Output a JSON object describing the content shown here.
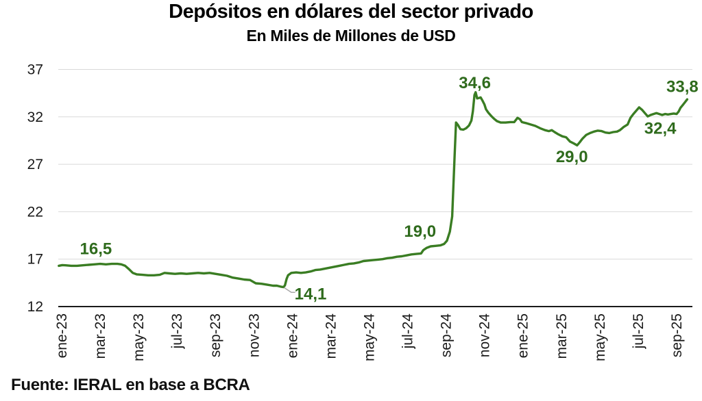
{
  "chart_data": {
    "type": "line",
    "title": "Depósitos en dólares del sector privado",
    "subtitle": "En Miles de Millones de USD",
    "source": "Fuente: IERAL en base a BCRA",
    "unit": "Miles de Millones de USD",
    "x_tick_labels": [
      "ene-23",
      "mar-23",
      "may-23",
      "jul-23",
      "sep-23",
      "nov-23",
      "ene-24",
      "mar-24",
      "may-24",
      "jul-24",
      "sep-24",
      "nov-24",
      "ene-25",
      "mar-25",
      "may-25",
      "jul-25",
      "sep-25"
    ],
    "y_ticks": [
      12,
      17,
      22,
      27,
      32,
      37
    ],
    "ylim": [
      12,
      37
    ],
    "xlim": [
      -0.3,
      33
    ],
    "grid": true,
    "legend": "none",
    "colors": {
      "line": "#3A7D23",
      "data_label": "#2F6B1D",
      "gridline": "#D9D9D9",
      "axis": "#1a1a1a",
      "tick_text": "#1a1a1a",
      "leader": "#A6A6A6",
      "background": "#ffffff"
    },
    "series": [
      {
        "name": "Depósitos en dólares del sector privado (miles de millones USD)",
        "points": [
          [
            -0.15,
            16.3
          ],
          [
            0.2,
            16.35
          ],
          [
            0.5,
            16.3
          ],
          [
            0.8,
            16.3
          ],
          [
            1.1,
            16.35
          ],
          [
            1.4,
            16.4
          ],
          [
            1.7,
            16.45
          ],
          [
            2.0,
            16.5
          ],
          [
            2.3,
            16.45
          ],
          [
            2.6,
            16.5
          ],
          [
            2.9,
            16.5
          ],
          [
            3.1,
            16.45
          ],
          [
            3.3,
            16.3
          ],
          [
            3.5,
            15.95
          ],
          [
            3.7,
            15.55
          ],
          [
            3.9,
            15.4
          ],
          [
            4.2,
            15.35
          ],
          [
            4.5,
            15.3
          ],
          [
            4.8,
            15.3
          ],
          [
            5.1,
            15.35
          ],
          [
            5.35,
            15.55
          ],
          [
            5.6,
            15.5
          ],
          [
            5.9,
            15.45
          ],
          [
            6.2,
            15.5
          ],
          [
            6.5,
            15.45
          ],
          [
            6.8,
            15.5
          ],
          [
            7.1,
            15.55
          ],
          [
            7.4,
            15.5
          ],
          [
            7.7,
            15.55
          ],
          [
            8.0,
            15.45
          ],
          [
            8.3,
            15.35
          ],
          [
            8.6,
            15.25
          ],
          [
            8.9,
            15.05
          ],
          [
            9.2,
            14.95
          ],
          [
            9.5,
            14.85
          ],
          [
            9.8,
            14.8
          ],
          [
            10.1,
            14.45
          ],
          [
            10.4,
            14.4
          ],
          [
            10.7,
            14.3
          ],
          [
            11.0,
            14.2
          ],
          [
            11.2,
            14.2
          ],
          [
            11.4,
            14.1
          ],
          [
            11.55,
            14.05
          ],
          [
            11.62,
            14.25
          ],
          [
            11.7,
            14.9
          ],
          [
            11.78,
            15.3
          ],
          [
            11.95,
            15.55
          ],
          [
            12.2,
            15.6
          ],
          [
            12.45,
            15.55
          ],
          [
            12.7,
            15.6
          ],
          [
            12.95,
            15.7
          ],
          [
            13.2,
            15.85
          ],
          [
            13.45,
            15.9
          ],
          [
            13.7,
            16.0
          ],
          [
            13.95,
            16.1
          ],
          [
            14.2,
            16.2
          ],
          [
            14.45,
            16.3
          ],
          [
            14.7,
            16.4
          ],
          [
            14.95,
            16.5
          ],
          [
            15.2,
            16.55
          ],
          [
            15.45,
            16.65
          ],
          [
            15.7,
            16.8
          ],
          [
            15.95,
            16.85
          ],
          [
            16.2,
            16.9
          ],
          [
            16.45,
            16.95
          ],
          [
            16.7,
            17.0
          ],
          [
            16.95,
            17.1
          ],
          [
            17.2,
            17.15
          ],
          [
            17.45,
            17.25
          ],
          [
            17.7,
            17.3
          ],
          [
            17.95,
            17.4
          ],
          [
            18.2,
            17.5
          ],
          [
            18.45,
            17.55
          ],
          [
            18.7,
            17.6
          ],
          [
            18.82,
            17.95
          ],
          [
            19.0,
            18.2
          ],
          [
            19.2,
            18.35
          ],
          [
            19.45,
            18.4
          ],
          [
            19.7,
            18.45
          ],
          [
            19.9,
            18.6
          ],
          [
            20.05,
            18.95
          ],
          [
            20.2,
            19.9
          ],
          [
            20.32,
            21.5
          ],
          [
            20.45,
            28.0
          ],
          [
            20.52,
            31.4
          ],
          [
            20.62,
            31.15
          ],
          [
            20.75,
            30.7
          ],
          [
            20.9,
            30.65
          ],
          [
            21.05,
            30.8
          ],
          [
            21.2,
            31.1
          ],
          [
            21.32,
            31.6
          ],
          [
            21.4,
            32.6
          ],
          [
            21.48,
            34.3
          ],
          [
            21.54,
            34.6
          ],
          [
            21.62,
            33.95
          ],
          [
            21.72,
            34.0
          ],
          [
            21.8,
            34.05
          ],
          [
            21.9,
            33.7
          ],
          [
            22.0,
            33.3
          ],
          [
            22.08,
            32.8
          ],
          [
            22.2,
            32.45
          ],
          [
            22.35,
            32.1
          ],
          [
            22.5,
            31.8
          ],
          [
            22.65,
            31.55
          ],
          [
            22.85,
            31.4
          ],
          [
            23.1,
            31.4
          ],
          [
            23.35,
            31.45
          ],
          [
            23.55,
            31.45
          ],
          [
            23.72,
            31.9
          ],
          [
            23.85,
            31.75
          ],
          [
            23.95,
            31.45
          ],
          [
            24.15,
            31.35
          ],
          [
            24.4,
            31.2
          ],
          [
            24.65,
            31.05
          ],
          [
            24.9,
            30.8
          ],
          [
            25.15,
            30.6
          ],
          [
            25.35,
            30.5
          ],
          [
            25.5,
            30.6
          ],
          [
            25.65,
            30.4
          ],
          [
            25.85,
            30.15
          ],
          [
            26.05,
            29.95
          ],
          [
            26.25,
            29.85
          ],
          [
            26.45,
            29.4
          ],
          [
            26.65,
            29.2
          ],
          [
            26.82,
            29.0
          ],
          [
            26.95,
            29.3
          ],
          [
            27.1,
            29.7
          ],
          [
            27.3,
            30.1
          ],
          [
            27.5,
            30.3
          ],
          [
            27.7,
            30.45
          ],
          [
            27.9,
            30.55
          ],
          [
            28.1,
            30.5
          ],
          [
            28.3,
            30.35
          ],
          [
            28.5,
            30.3
          ],
          [
            28.7,
            30.4
          ],
          [
            28.9,
            30.45
          ],
          [
            29.05,
            30.6
          ],
          [
            29.25,
            30.95
          ],
          [
            29.45,
            31.2
          ],
          [
            29.6,
            31.9
          ],
          [
            29.75,
            32.3
          ],
          [
            29.9,
            32.65
          ],
          [
            30.05,
            33.0
          ],
          [
            30.2,
            32.75
          ],
          [
            30.35,
            32.4
          ],
          [
            30.5,
            32.05
          ],
          [
            30.65,
            32.2
          ],
          [
            30.8,
            32.3
          ],
          [
            30.95,
            32.4
          ],
          [
            31.1,
            32.3
          ],
          [
            31.25,
            32.2
          ],
          [
            31.4,
            32.3
          ],
          [
            31.55,
            32.25
          ],
          [
            31.7,
            32.3
          ],
          [
            31.85,
            32.35
          ],
          [
            32.0,
            32.3
          ],
          [
            32.1,
            32.55
          ],
          [
            32.2,
            32.95
          ],
          [
            32.3,
            33.2
          ],
          [
            32.42,
            33.5
          ],
          [
            32.55,
            33.85
          ]
        ]
      }
    ],
    "annotations": [
      {
        "text": "16,5",
        "x": 1.78,
        "y": 18.1
      },
      {
        "text": "14,1",
        "x": 12.95,
        "y": 13.35,
        "leader": [
          [
            11.57,
            14.0
          ],
          [
            11.95,
            13.5
          ],
          [
            12.15,
            13.5
          ]
        ]
      },
      {
        "text": "19,0",
        "x": 18.65,
        "y": 19.95
      },
      {
        "text": "34,6",
        "x": 21.5,
        "y": 35.6
      },
      {
        "text": "29,0",
        "x": 26.55,
        "y": 27.8
      },
      {
        "text": "32,4",
        "x": 31.15,
        "y": 30.8
      },
      {
        "text": "33,8",
        "x": 32.3,
        "y": 35.2
      }
    ]
  }
}
